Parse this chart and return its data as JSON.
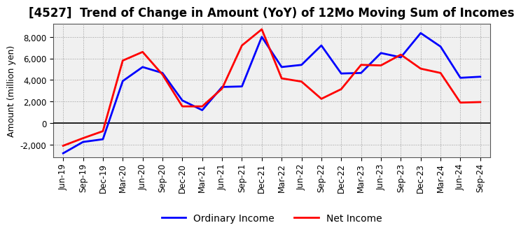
{
  "title": "[4527]  Trend of Change in Amount (YoY) of 12Mo Moving Sum of Incomes",
  "ylabel": "Amount (million yen)",
  "x_labels": [
    "Jun-19",
    "Sep-19",
    "Dec-19",
    "Mar-20",
    "Jun-20",
    "Sep-20",
    "Dec-20",
    "Mar-21",
    "Jun-21",
    "Sep-21",
    "Dec-21",
    "Mar-22",
    "Jun-22",
    "Sep-22",
    "Dec-22",
    "Mar-23",
    "Jun-23",
    "Sep-23",
    "Dec-23",
    "Mar-24",
    "Jun-24",
    "Sep-24"
  ],
  "ordinary_income": [
    -2800,
    -1750,
    -1500,
    3900,
    5200,
    4650,
    2100,
    1200,
    3350,
    3400,
    8000,
    5200,
    5400,
    7200,
    4600,
    4650,
    6500,
    6100,
    8350,
    7100,
    4200,
    4300
  ],
  "net_income": [
    -2100,
    -1400,
    -750,
    5800,
    6600,
    4500,
    1550,
    1550,
    3200,
    7200,
    8700,
    4150,
    3850,
    2250,
    3150,
    5400,
    5350,
    6350,
    5050,
    4650,
    1900,
    1950
  ],
  "ordinary_income_color": "#0000ff",
  "net_income_color": "#ff0000",
  "background_color": "#ffffff",
  "plot_bg_color": "#f0f0f0",
  "grid_color": "#999999",
  "ylim": [
    -3200,
    9200
  ],
  "yticks": [
    -2000,
    0,
    2000,
    4000,
    6000,
    8000
  ],
  "legend_labels": [
    "Ordinary Income",
    "Net Income"
  ],
  "title_fontsize": 12,
  "axis_fontsize": 9,
  "tick_fontsize": 8.5
}
